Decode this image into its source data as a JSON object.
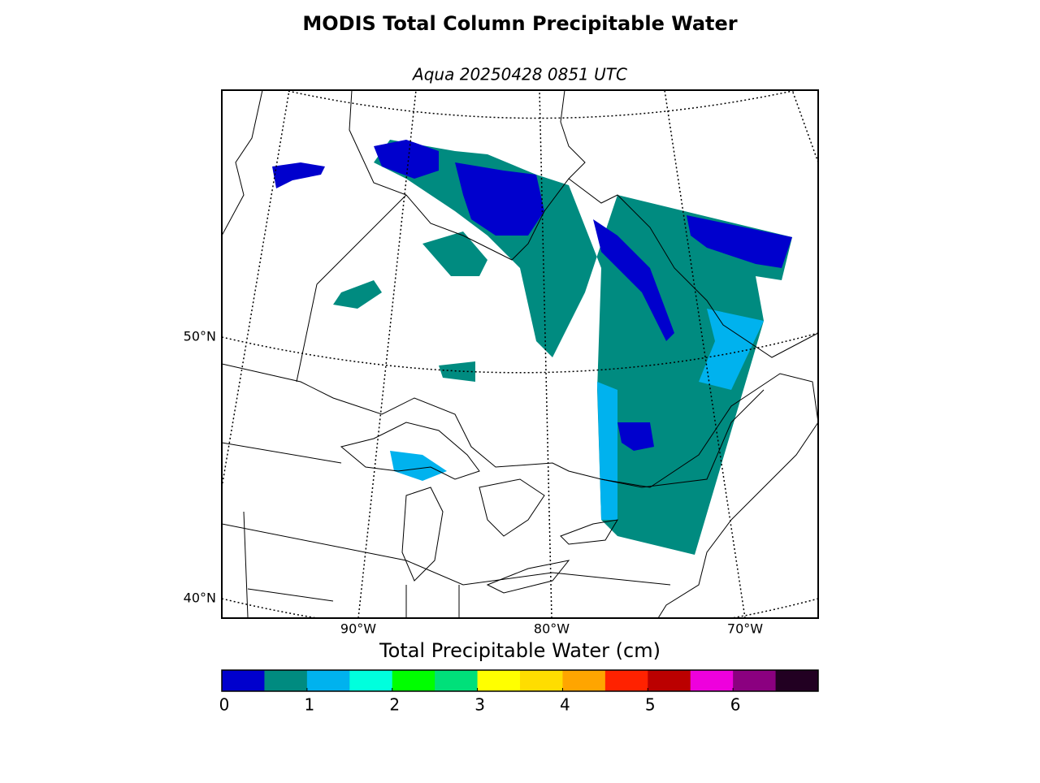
{
  "title": "MODIS Total Column Precipitable Water",
  "subtitle": "Aqua 20250428 0851 UTC",
  "map": {
    "lat_labels": [
      "50°N",
      "40°N"
    ],
    "lon_labels": [
      "90°W",
      "80°W",
      "70°W"
    ]
  },
  "colorbar": {
    "label": "Total Precipitable Water (cm)",
    "colors": [
      "#0000cd",
      "#008b80",
      "#00b2ee",
      "#00ffdd",
      "#00ff00",
      "#00e07a",
      "#ffff00",
      "#ffdd00",
      "#ffa500",
      "#ff2200",
      "#bb0000",
      "#ee00dd",
      "#8b0080",
      "#220022"
    ],
    "bounds": [
      0,
      7
    ],
    "ticks": [
      0,
      1,
      2,
      3,
      4,
      5,
      6
    ]
  }
}
